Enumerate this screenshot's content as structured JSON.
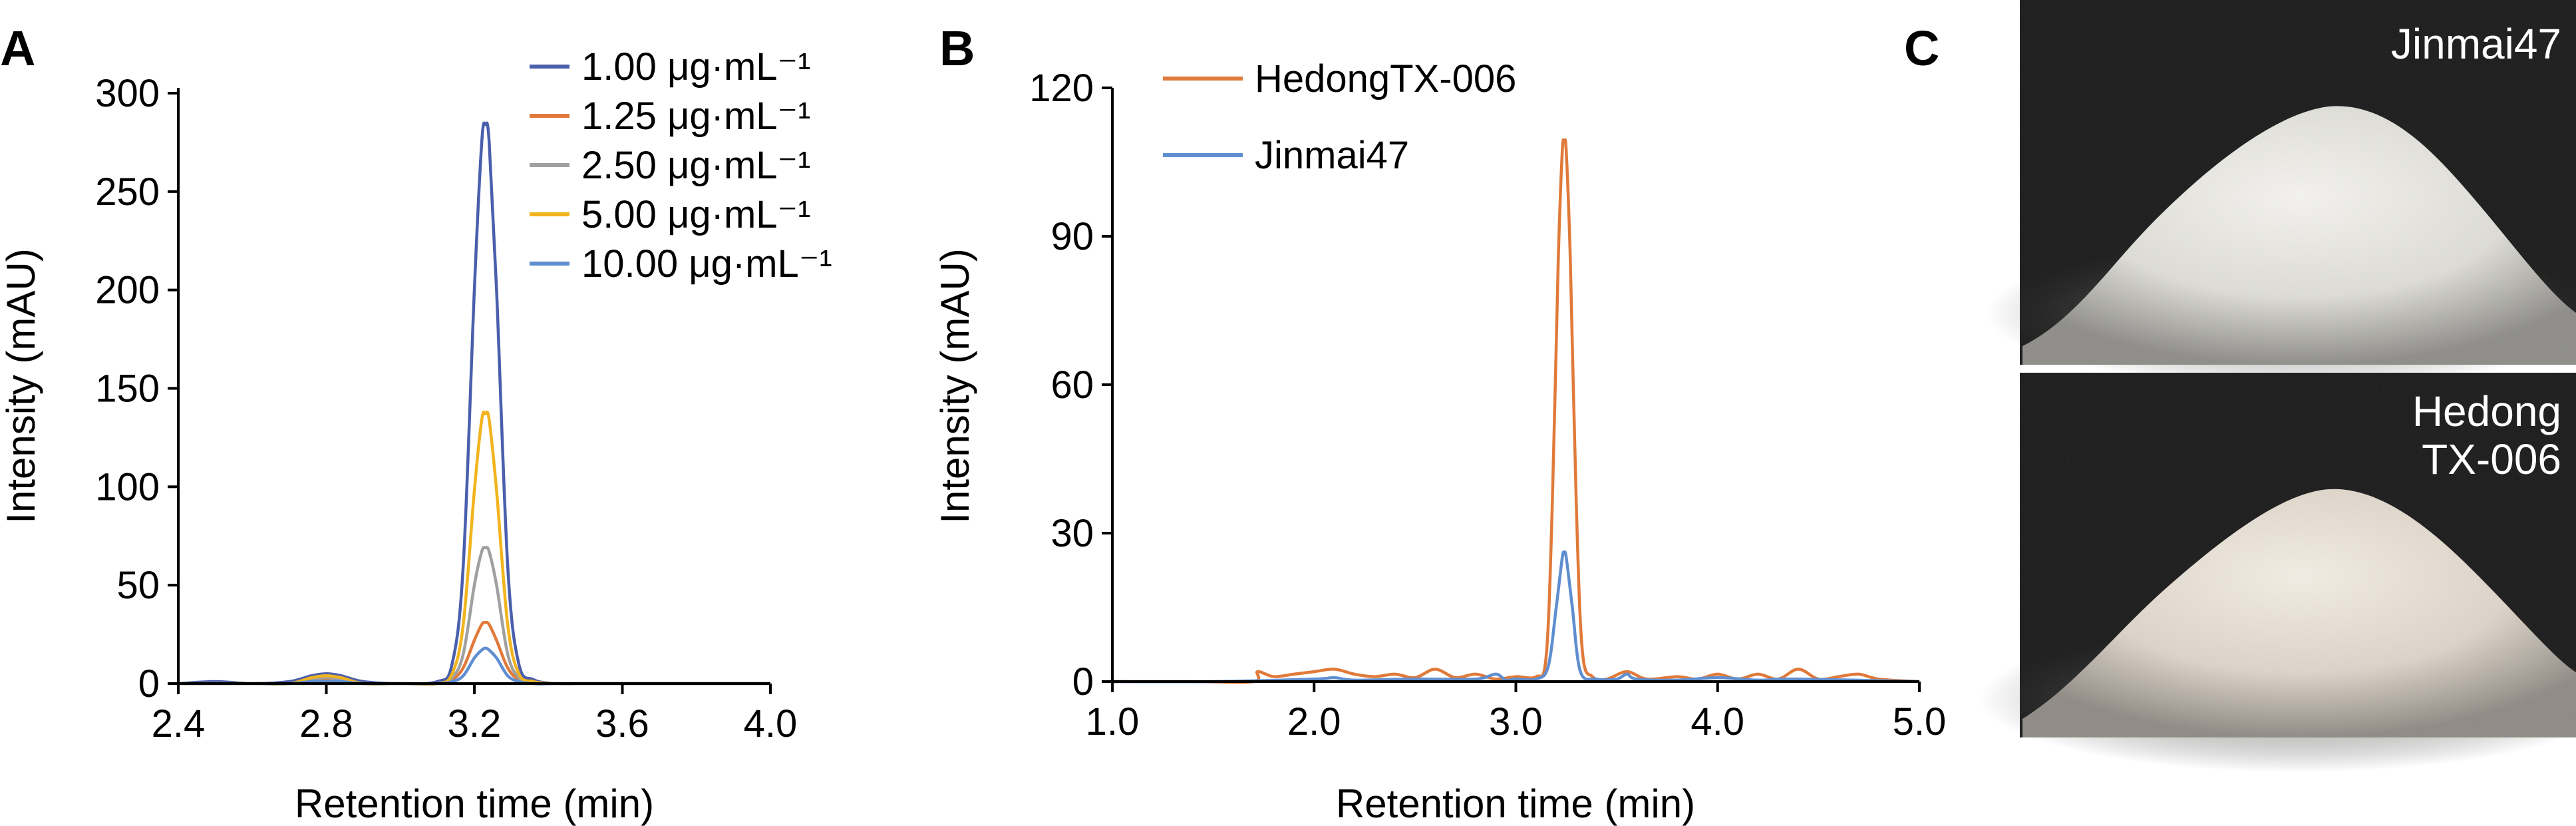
{
  "panels": {
    "a": "A",
    "b": "B",
    "c": "C"
  },
  "chart_data": [
    {
      "type": "line",
      "panel": "A",
      "xlabel": "Retention time (min)",
      "ylabel": "Intensity (mAU)",
      "xlim": [
        2.4,
        4.0
      ],
      "ylim": [
        0,
        300
      ],
      "xticks": [
        "2.4",
        "2.8",
        "3.2",
        "3.6",
        "4.0"
      ],
      "xtick_values": [
        2.4,
        2.8,
        3.2,
        3.6,
        4.0
      ],
      "yticks": [
        "0",
        "50",
        "100",
        "150",
        "200",
        "250",
        "300"
      ],
      "ytick_values": [
        0,
        50,
        100,
        150,
        200,
        250,
        300
      ],
      "legend_position": "top-right",
      "series": [
        {
          "name": "1.00 μg·mL⁻¹",
          "color": "#4a5fac",
          "x": [
            2.4,
            2.5,
            2.6,
            2.7,
            2.76,
            2.8,
            2.84,
            2.9,
            3.0,
            3.1,
            3.14,
            3.17,
            3.2,
            3.22,
            3.23,
            3.24,
            3.26,
            3.29,
            3.32,
            3.36,
            3.42,
            3.5,
            3.6,
            3.8,
            4.0
          ],
          "y": [
            0,
            1,
            0,
            1,
            4,
            5,
            4,
            1,
            0,
            1,
            10,
            60,
            200,
            275,
            284,
            275,
            200,
            60,
            10,
            2,
            0,
            0,
            0,
            0,
            0
          ]
        },
        {
          "name": "1.25 μg·mL⁻¹",
          "color": "#e07a3a",
          "x": [
            2.4,
            2.5,
            2.6,
            2.7,
            2.76,
            2.8,
            2.84,
            2.9,
            3.0,
            3.1,
            3.14,
            3.17,
            3.2,
            3.22,
            3.23,
            3.24,
            3.26,
            3.29,
            3.32,
            3.36,
            3.42,
            3.5,
            3.6,
            3.8,
            4.0
          ],
          "y": [
            0,
            0,
            0,
            0,
            1,
            2,
            1,
            0,
            0,
            0,
            2,
            8,
            22,
            30,
            31,
            30,
            22,
            8,
            2,
            0,
            0,
            0,
            0,
            0,
            0
          ]
        },
        {
          "name": "2.50 μg·mL⁻¹",
          "color": "#a0a0a0",
          "x": [
            2.4,
            2.5,
            2.6,
            2.7,
            2.76,
            2.8,
            2.84,
            2.9,
            3.0,
            3.1,
            3.14,
            3.17,
            3.2,
            3.22,
            3.23,
            3.24,
            3.26,
            3.29,
            3.32,
            3.36,
            3.42,
            3.5,
            3.6,
            3.8,
            4.0
          ],
          "y": [
            0,
            0,
            0,
            0,
            2,
            3,
            2,
            0,
            0,
            0,
            3,
            15,
            50,
            67,
            69,
            67,
            50,
            15,
            3,
            0,
            0,
            0,
            0,
            0,
            0
          ]
        },
        {
          "name": "5.00 μg·mL⁻¹",
          "color": "#f2b41e",
          "x": [
            2.4,
            2.5,
            2.6,
            2.7,
            2.76,
            2.8,
            2.84,
            2.9,
            3.0,
            3.1,
            3.14,
            3.17,
            3.2,
            3.22,
            3.23,
            3.24,
            3.26,
            3.29,
            3.32,
            3.36,
            3.42,
            3.5,
            3.6,
            3.8,
            4.0
          ],
          "y": [
            0,
            0,
            0,
            0,
            3,
            4,
            3,
            0,
            0,
            0,
            5,
            30,
            98,
            134,
            137,
            134,
            98,
            30,
            5,
            1,
            0,
            0,
            0,
            0,
            0
          ]
        },
        {
          "name": "10.00 μg·mL⁻¹",
          "color": "#5f8ed0",
          "x": [
            2.4,
            2.5,
            2.6,
            2.7,
            2.76,
            2.8,
            2.84,
            2.9,
            3.0,
            3.1,
            3.14,
            3.17,
            3.2,
            3.22,
            3.23,
            3.24,
            3.26,
            3.29,
            3.32,
            3.36,
            3.42,
            3.5,
            3.6,
            3.8,
            4.0
          ],
          "y": [
            0,
            0,
            0,
            0,
            1,
            1,
            1,
            0,
            0,
            0,
            1,
            4,
            13,
            17,
            18,
            17,
            13,
            4,
            1,
            0,
            0,
            0,
            0,
            0,
            0
          ]
        }
      ]
    },
    {
      "type": "line",
      "panel": "B",
      "xlabel": "Retention time (min)",
      "ylabel": "Intensity (mAU)",
      "xlim": [
        1.0,
        5.0
      ],
      "ylim": [
        0,
        120
      ],
      "xticks": [
        "1.0",
        "2.0",
        "3.0",
        "4.0",
        "5.0"
      ],
      "xtick_values": [
        1.0,
        2.0,
        3.0,
        4.0,
        5.0
      ],
      "yticks": [
        "0",
        "30",
        "60",
        "90",
        "120"
      ],
      "ytick_values": [
        0,
        30,
        60,
        90,
        120
      ],
      "legend_position": "top-left",
      "series": [
        {
          "name": "HedongTX-006",
          "color": "#e07a3a",
          "x": [
            1.0,
            1.4,
            1.7,
            1.72,
            1.8,
            1.9,
            2.0,
            2.1,
            2.2,
            2.3,
            2.4,
            2.5,
            2.6,
            2.7,
            2.8,
            2.9,
            3.0,
            3.1,
            3.15,
            3.18,
            3.21,
            3.23,
            3.24,
            3.25,
            3.27,
            3.3,
            3.33,
            3.38,
            3.45,
            3.55,
            3.65,
            3.8,
            3.9,
            4.0,
            4.1,
            4.2,
            4.3,
            4.4,
            4.5,
            4.6,
            4.7,
            4.8,
            5.0
          ],
          "y": [
            0,
            0,
            0,
            2,
            1,
            1.5,
            2,
            2.5,
            1.5,
            1,
            1.5,
            0.8,
            2.5,
            0.8,
            1.5,
            0.5,
            1,
            1,
            5,
            35,
            85,
            107,
            109,
            107,
            85,
            35,
            6,
            1,
            0.5,
            2,
            0.5,
            1,
            0.5,
            1.5,
            0.5,
            1.5,
            0.5,
            2.5,
            0.5,
            1,
            1.5,
            0.5,
            0
          ]
        },
        {
          "name": "Jinmai47",
          "color": "#5f8ed0",
          "x": [
            1.0,
            1.5,
            2.0,
            2.1,
            2.2,
            2.5,
            2.8,
            2.9,
            2.95,
            3.0,
            3.1,
            3.16,
            3.2,
            3.23,
            3.24,
            3.25,
            3.28,
            3.32,
            3.4,
            3.5,
            3.55,
            3.6,
            3.8,
            4.0,
            4.2,
            4.4,
            5.0
          ],
          "y": [
            0,
            0,
            0.5,
            0.8,
            0.3,
            0.5,
            0.5,
            1.5,
            0.3,
            0.5,
            0.5,
            3,
            15,
            25,
            26,
            25,
            15,
            2,
            0.5,
            0.5,
            1.5,
            0.5,
            0.3,
            0.8,
            0.3,
            0.5,
            0
          ]
        }
      ]
    }
  ],
  "photos": [
    {
      "label_lines": [
        "Jinmai47"
      ],
      "tone": "#ecebe6"
    },
    {
      "label_lines": [
        "Hedong",
        "TX-006"
      ],
      "tone": "#eee6dc"
    }
  ]
}
